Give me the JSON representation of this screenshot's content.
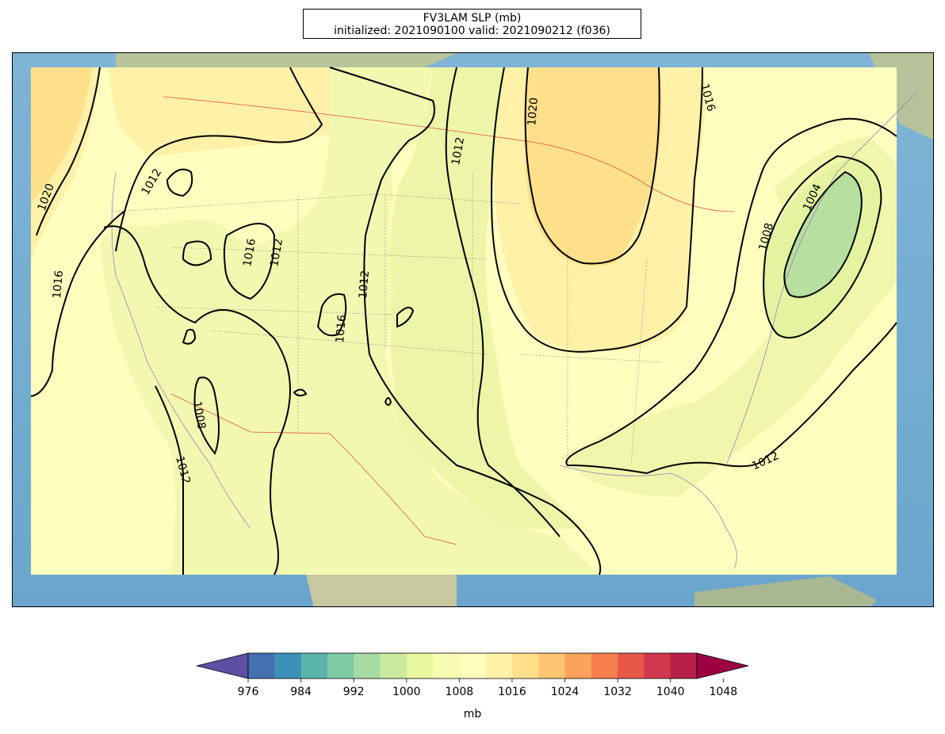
{
  "title": {
    "line1": "FV3LAM SLP (mb)",
    "line2": "initialized: 2021090100 valid: 2021090212 (f036)"
  },
  "contour_labels": [
    "1020",
    "1016",
    "1012",
    "1016",
    "1012",
    "1012",
    "1016",
    "1008",
    "1012",
    "1012",
    "1020",
    "1016",
    "1008",
    "1004",
    "1012"
  ],
  "colorbar": {
    "unit_label": "mb",
    "tick_labels": [
      "976",
      "984",
      "992",
      "1000",
      "1008",
      "1016",
      "1024",
      "1032",
      "1040",
      "1048"
    ],
    "colors": [
      "#5e4fa2",
      "#4470b1",
      "#3b92b8",
      "#59b4aa",
      "#7ecba4",
      "#a6dba4",
      "#cae99d",
      "#e8f69c",
      "#f7fcb3",
      "#fffebe",
      "#fff1a8",
      "#fee08b",
      "#fdc474",
      "#fba25e",
      "#f67f4b",
      "#e65847",
      "#d0384e",
      "#b51f48",
      "#9e0142"
    ]
  }
}
